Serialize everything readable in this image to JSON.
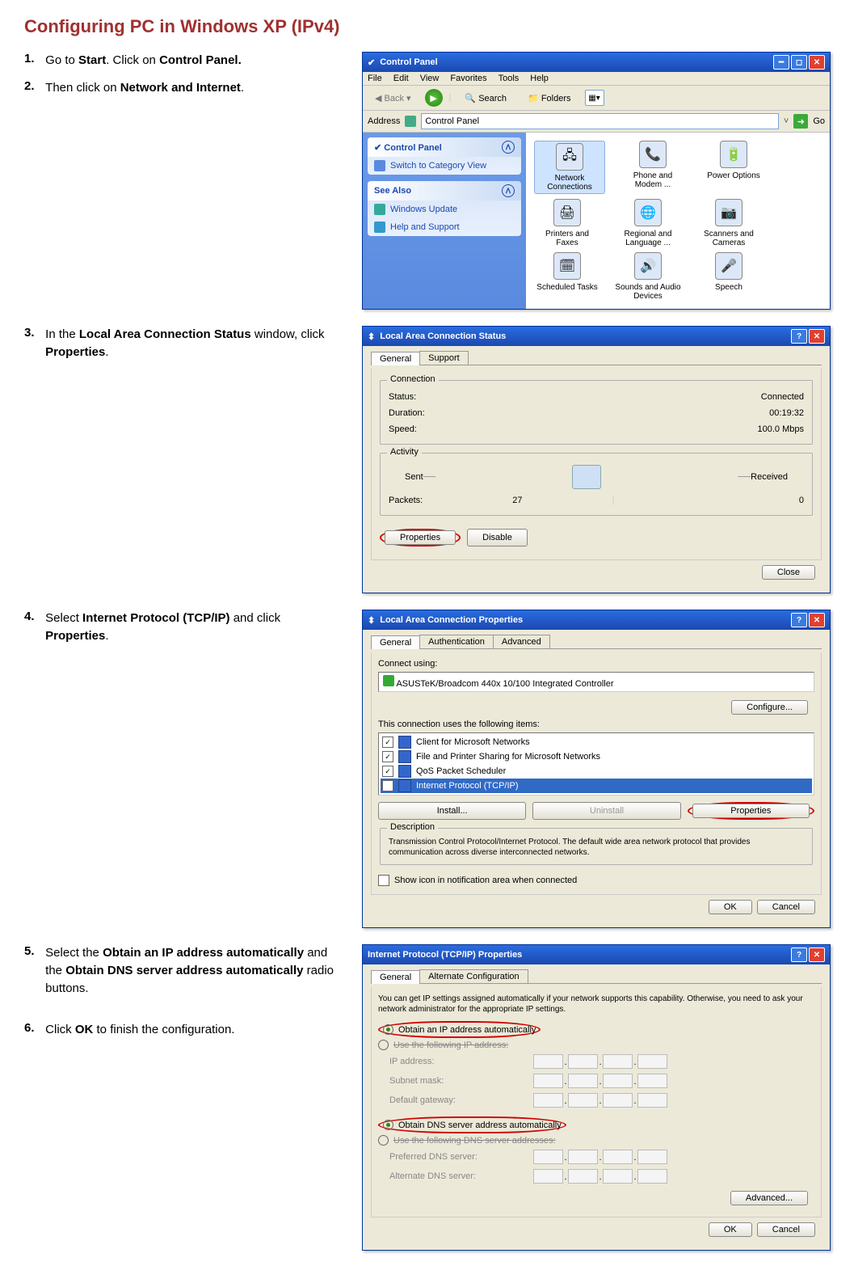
{
  "page_title": "Configuring PC in Windows XP (IPv4)",
  "steps": {
    "s1": {
      "num": "1.",
      "text_a": "Go to ",
      "b1": "Start",
      "text_b": ". Click on ",
      "b2": "Control Panel."
    },
    "s2": {
      "num": "2.",
      "text_a": "Then click on ",
      "b1": "Network and Internet",
      "text_b": "."
    },
    "s3": {
      "num": "3.",
      "text_a": "In the ",
      "b1": "Local Area Connection Status",
      "text_b": " window, click ",
      "b2": "Properties",
      "text_c": "."
    },
    "s4": {
      "num": "4.",
      "text_a": "Select ",
      "b1": "Internet Protocol (TCP/IP)",
      "text_b": " and click ",
      "b2": "Properties",
      "text_c": "."
    },
    "s5": {
      "num": "5.",
      "text_a": "Select the ",
      "b1": "Obtain an IP address automatically",
      "text_b": " and the ",
      "b2": "Obtain DNS server address automatically",
      "text_c": " radio buttons."
    },
    "s6": {
      "num": "6.",
      "text_a": "Click ",
      "b1": "OK",
      "text_b": " to finish the configuration."
    }
  },
  "cp_window": {
    "title": "Control Panel",
    "menu": [
      "File",
      "Edit",
      "View",
      "Favorites",
      "Tools",
      "Help"
    ],
    "tb_back": "Back",
    "tb_search": "Search",
    "tb_folders": "Folders",
    "addr_label": "Address",
    "addr_value": "Control Panel",
    "go": "Go",
    "side_panel_title": "Control Panel",
    "side_switch": "Switch to Category View",
    "see_also": "See Also",
    "see_items": [
      "Windows Update",
      "Help and Support"
    ],
    "icons": [
      {
        "label": "Network Connections",
        "glyph": "🖧",
        "selected": true
      },
      {
        "label": "Phone and Modem ...",
        "glyph": "📞"
      },
      {
        "label": "Power Options",
        "glyph": "🔋"
      },
      {
        "label": "Printers and Faxes",
        "glyph": "🖨"
      },
      {
        "label": "Regional and Language ...",
        "glyph": "🌐"
      },
      {
        "label": "Scanners and Cameras",
        "glyph": "📷"
      },
      {
        "label": "Scheduled Tasks",
        "glyph": "🗓"
      },
      {
        "label": "Sounds and Audio Devices",
        "glyph": "🔊"
      },
      {
        "label": "Speech",
        "glyph": "🎤"
      }
    ]
  },
  "lac_status": {
    "title": "Local Area Connection Status",
    "tabs": [
      "General",
      "Support"
    ],
    "grp_conn": "Connection",
    "status_l": "Status:",
    "status_v": "Connected",
    "duration_l": "Duration:",
    "duration_v": "00:19:32",
    "speed_l": "Speed:",
    "speed_v": "100.0 Mbps",
    "grp_act": "Activity",
    "sent": "Sent",
    "received": "Received",
    "packets_l": "Packets:",
    "packets_sent": "27",
    "packets_recv": "0",
    "btn_props": "Properties",
    "btn_disable": "Disable",
    "btn_close": "Close"
  },
  "lac_props": {
    "title": "Local Area Connection Properties",
    "tabs": [
      "General",
      "Authentication",
      "Advanced"
    ],
    "connect_using": "Connect using:",
    "adapter": "ASUSTeK/Broadcom 440x 10/100 Integrated Controller",
    "configure": "Configure...",
    "items_label": "This connection uses the following items:",
    "items": [
      "Client for Microsoft Networks",
      "File and Printer Sharing for Microsoft Networks",
      "QoS Packet Scheduler",
      "Internet Protocol (TCP/IP)"
    ],
    "install": "Install...",
    "uninstall": "Uninstall",
    "properties": "Properties",
    "desc_legend": "Description",
    "desc_text": "Transmission Control Protocol/Internet Protocol. The default wide area network protocol that provides communication across diverse interconnected networks.",
    "show_icon": "Show icon in notification area when connected",
    "ok": "OK",
    "cancel": "Cancel"
  },
  "tcpip": {
    "title": "Internet Protocol (TCP/IP) Properties",
    "tabs": [
      "General",
      "Alternate Configuration"
    ],
    "intro": "You can get IP settings assigned automatically if your network supports this capability. Otherwise, you need to ask your network administrator for the appropriate IP settings.",
    "r_auto_ip": "Obtain an IP address automatically",
    "r_use_ip": "Use the following IP address:",
    "ip": "IP address:",
    "subnet": "Subnet mask:",
    "gateway": "Default gateway:",
    "r_auto_dns": "Obtain DNS server address automatically",
    "r_use_dns": "Use the following DNS server addresses:",
    "pref_dns": "Preferred DNS server:",
    "alt_dns": "Alternate DNS server:",
    "advanced": "Advanced...",
    "ok": "OK",
    "cancel": "Cancel"
  }
}
